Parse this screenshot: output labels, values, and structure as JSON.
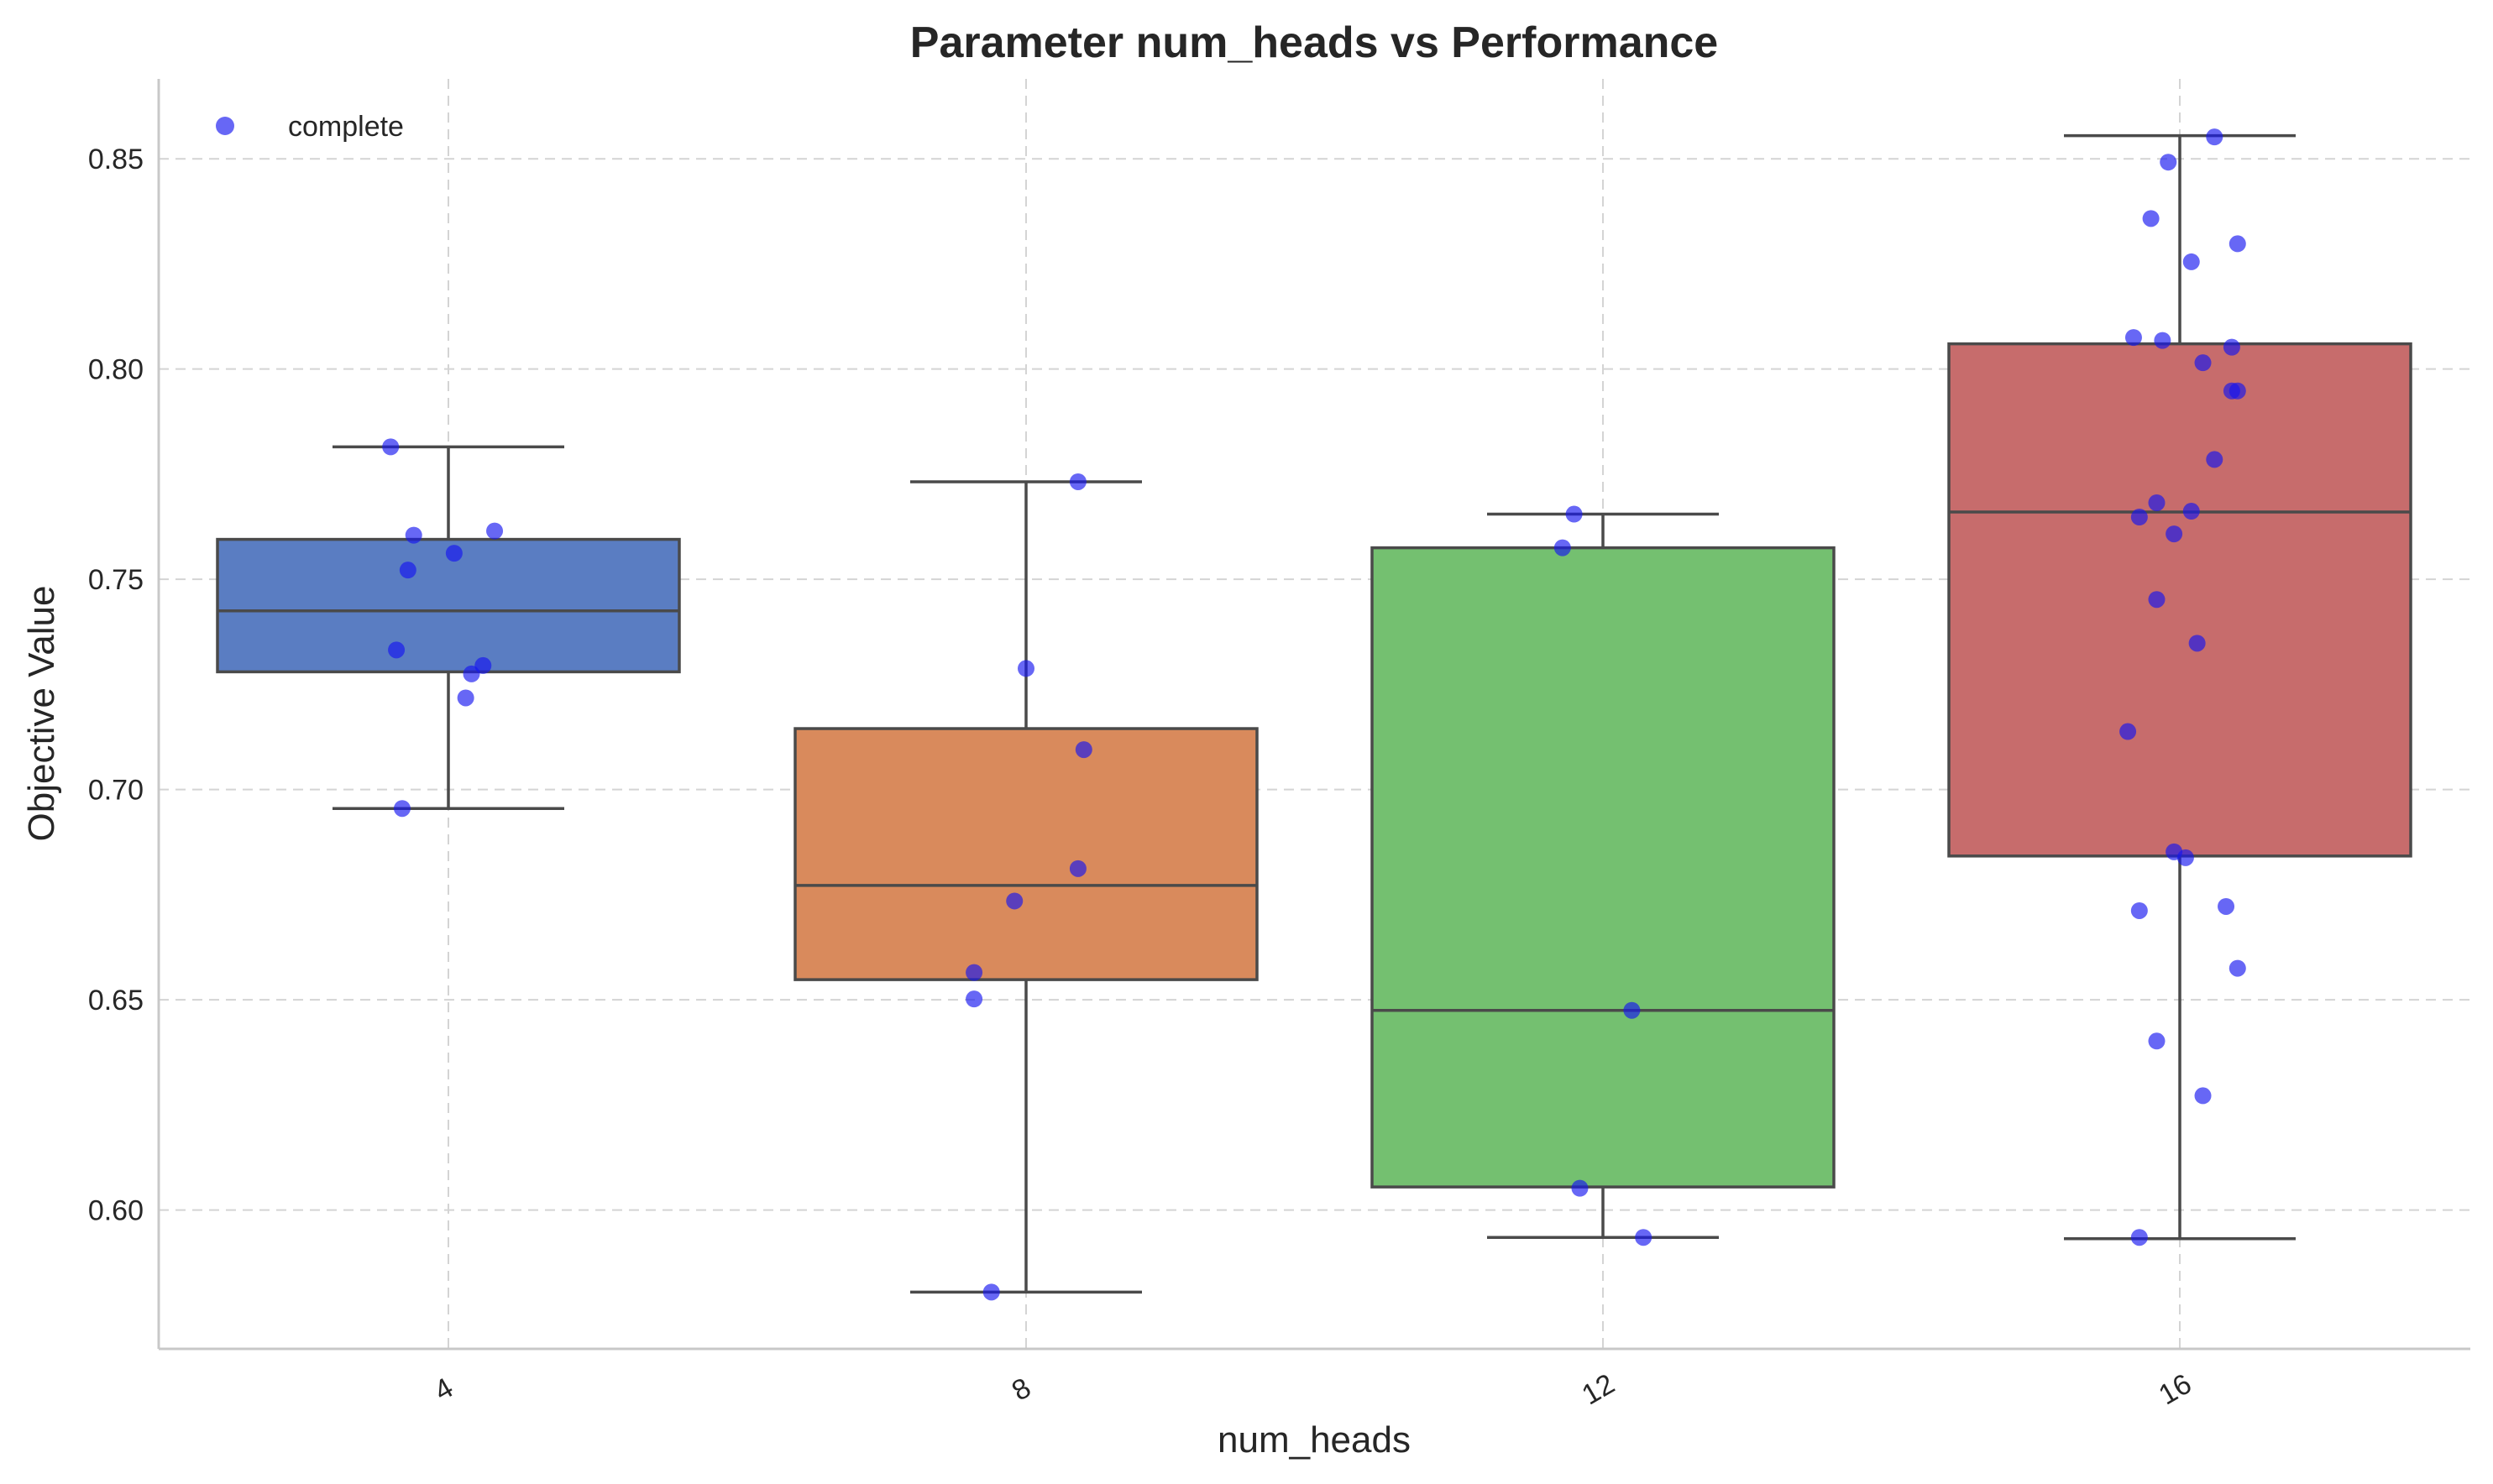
{
  "chart_data": {
    "type": "box",
    "title": "Parameter num_heads vs Performance",
    "xlabel": "num_heads",
    "ylabel": "Objective Value",
    "ylim": [
      0.567,
      0.869
    ],
    "yticks": [
      0.6,
      0.65,
      0.7,
      0.75,
      0.8,
      0.85
    ],
    "ytick_labels": [
      "0.60",
      "0.65",
      "0.70",
      "0.75",
      "0.80",
      "0.85"
    ],
    "categories": [
      "4",
      "8",
      "12",
      "16"
    ],
    "grid": true,
    "legend": {
      "position": "top-left",
      "entries": [
        "complete"
      ]
    },
    "colors": {
      "boxes": [
        "#5a7dc2",
        "#d98a5c",
        "#74c070",
        "#c76c6c"
      ],
      "points": "#1515f0"
    },
    "boxes": [
      {
        "category": "4",
        "whisker_low": 0.6955,
        "q1": 0.728,
        "median": 0.7425,
        "q3": 0.7595,
        "whisker_high": 0.7815
      },
      {
        "category": "8",
        "whisker_low": 0.5805,
        "q1": 0.6548,
        "median": 0.6772,
        "q3": 0.7145,
        "whisker_high": 0.7732
      },
      {
        "category": "12",
        "whisker_low": 0.5935,
        "q1": 0.6055,
        "median": 0.6475,
        "q3": 0.7575,
        "whisker_high": 0.7655
      },
      {
        "category": "16",
        "whisker_low": 0.5932,
        "q1": 0.6842,
        "median": 0.766,
        "q3": 0.806,
        "whisker_high": 0.8555
      }
    ],
    "series": [
      {
        "name": "complete",
        "points": [
          {
            "category": "4",
            "jitter": -0.1,
            "y": 0.7815
          },
          {
            "category": "4",
            "jitter": -0.06,
            "y": 0.7605
          },
          {
            "category": "4",
            "jitter": 0.08,
            "y": 0.7615
          },
          {
            "category": "4",
            "jitter": 0.01,
            "y": 0.7562
          },
          {
            "category": "4",
            "jitter": -0.07,
            "y": 0.7522
          },
          {
            "category": "4",
            "jitter": -0.09,
            "y": 0.7332
          },
          {
            "category": "4",
            "jitter": 0.06,
            "y": 0.7295
          },
          {
            "category": "4",
            "jitter": 0.04,
            "y": 0.7275
          },
          {
            "category": "4",
            "jitter": 0.03,
            "y": 0.7218
          },
          {
            "category": "4",
            "jitter": -0.08,
            "y": 0.6955
          },
          {
            "category": "8",
            "jitter": 0.09,
            "y": 0.7732
          },
          {
            "category": "8",
            "jitter": 0.0,
            "y": 0.7288
          },
          {
            "category": "8",
            "jitter": 0.1,
            "y": 0.7095
          },
          {
            "category": "8",
            "jitter": 0.09,
            "y": 0.6812
          },
          {
            "category": "8",
            "jitter": -0.02,
            "y": 0.6735
          },
          {
            "category": "8",
            "jitter": -0.09,
            "y": 0.6565
          },
          {
            "category": "8",
            "jitter": -0.09,
            "y": 0.6502
          },
          {
            "category": "8",
            "jitter": -0.06,
            "y": 0.5805
          },
          {
            "category": "12",
            "jitter": -0.05,
            "y": 0.7655
          },
          {
            "category": "12",
            "jitter": -0.07,
            "y": 0.7575
          },
          {
            "category": "12",
            "jitter": 0.05,
            "y": 0.6475
          },
          {
            "category": "12",
            "jitter": -0.04,
            "y": 0.6052
          },
          {
            "category": "12",
            "jitter": 0.07,
            "y": 0.5935
          },
          {
            "category": "16",
            "jitter": 0.06,
            "y": 0.8552
          },
          {
            "category": "16",
            "jitter": -0.02,
            "y": 0.8492
          },
          {
            "category": "16",
            "jitter": -0.05,
            "y": 0.8358
          },
          {
            "category": "16",
            "jitter": 0.1,
            "y": 0.8298
          },
          {
            "category": "16",
            "jitter": 0.02,
            "y": 0.8255
          },
          {
            "category": "16",
            "jitter": -0.08,
            "y": 0.8075
          },
          {
            "category": "16",
            "jitter": -0.03,
            "y": 0.8068
          },
          {
            "category": "16",
            "jitter": 0.09,
            "y": 0.8052
          },
          {
            "category": "16",
            "jitter": 0.04,
            "y": 0.8015
          },
          {
            "category": "16",
            "jitter": 0.09,
            "y": 0.7948
          },
          {
            "category": "16",
            "jitter": 0.1,
            "y": 0.7948
          },
          {
            "category": "16",
            "jitter": 0.06,
            "y": 0.7785
          },
          {
            "category": "16",
            "jitter": -0.04,
            "y": 0.7682
          },
          {
            "category": "16",
            "jitter": 0.02,
            "y": 0.7662
          },
          {
            "category": "16",
            "jitter": -0.07,
            "y": 0.7648
          },
          {
            "category": "16",
            "jitter": -0.01,
            "y": 0.7608
          },
          {
            "category": "16",
            "jitter": -0.04,
            "y": 0.7452
          },
          {
            "category": "16",
            "jitter": 0.03,
            "y": 0.7348
          },
          {
            "category": "16",
            "jitter": -0.09,
            "y": 0.7138
          },
          {
            "category": "16",
            "jitter": -0.01,
            "y": 0.6852
          },
          {
            "category": "16",
            "jitter": 0.01,
            "y": 0.6838
          },
          {
            "category": "16",
            "jitter": 0.08,
            "y": 0.6722
          },
          {
            "category": "16",
            "jitter": -0.07,
            "y": 0.6712
          },
          {
            "category": "16",
            "jitter": 0.1,
            "y": 0.6575
          },
          {
            "category": "16",
            "jitter": -0.04,
            "y": 0.6402
          },
          {
            "category": "16",
            "jitter": 0.04,
            "y": 0.6272
          },
          {
            "category": "16",
            "jitter": -0.07,
            "y": 0.5935
          }
        ]
      }
    ]
  }
}
